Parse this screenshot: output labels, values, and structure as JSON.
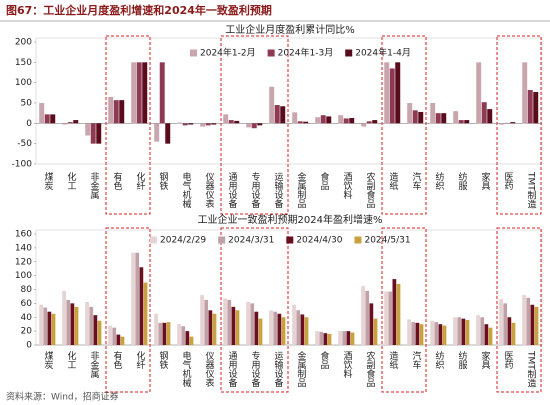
{
  "header": {
    "title": "图67：工业企业月度盈利增速和2024年一致盈利预期"
  },
  "footer": {
    "source": "资料来源：Wind，招商证券"
  },
  "chart_data": [
    {
      "type": "bar",
      "title": "工业企业月度盈利累计同比%",
      "categories": [
        "煤炭",
        "化工",
        "非金属",
        "有色",
        "化纤",
        "钢铁",
        "电气机械",
        "仪器仪表",
        "通用设备",
        "专用设备",
        "运输设备",
        "金属制品",
        "食品",
        "酒饮料",
        "农副食品",
        "造纸",
        "汽车",
        "纺织",
        "纺服",
        "家具",
        "医药",
        "TMT制造"
      ],
      "series": [
        {
          "name": "2024年1-2月",
          "color": "#c9a6ad",
          "values": [
            50,
            -3,
            -30,
            65,
            150,
            -45,
            2,
            -8,
            22,
            -10,
            90,
            27,
            15,
            20,
            -8,
            150,
            50,
            50,
            30,
            150,
            -3,
            150
          ]
        },
        {
          "name": "2024年1-3月",
          "color": "#8e3a52",
          "values": [
            22,
            3,
            -50,
            57,
            150,
            150,
            -5,
            -5,
            8,
            -12,
            45,
            5,
            20,
            12,
            5,
            135,
            32,
            25,
            8,
            52,
            1,
            82
          ]
        },
        {
          "name": "2024年1-4月",
          "color": "#5a0c1c",
          "values": [
            22,
            8,
            -50,
            57,
            150,
            -50,
            -3,
            -3,
            6,
            -5,
            42,
            4,
            17,
            13,
            8,
            150,
            28,
            25,
            8,
            35,
            3,
            77
          ]
        }
      ],
      "ylim": [
        -100,
        200
      ],
      "yticks": [
        -100,
        -50,
        0,
        50,
        100,
        150,
        200
      ],
      "grid": false,
      "legend": "top"
    },
    {
      "type": "bar",
      "title": "工业企业一致盈利预期2024年盈利增速%",
      "categories": [
        "煤炭",
        "化工",
        "非金属",
        "有色",
        "化纤",
        "钢铁",
        "电气机械",
        "仪器仪表",
        "通用设备",
        "专用设备",
        "运输设备",
        "金属制品",
        "食品",
        "酒饮料",
        "农副食品",
        "造纸",
        "汽车",
        "纺织",
        "纺服",
        "家具",
        "医药",
        "TMT制造"
      ],
      "series": [
        {
          "name": "2024/2/29",
          "color": "#e6d3d3",
          "values": [
            58,
            78,
            62,
            28,
            133,
            45,
            30,
            72,
            67,
            62,
            50,
            58,
            20,
            20,
            85,
            77,
            37,
            35,
            40,
            43,
            66,
            72
          ]
        },
        {
          "name": "2024/3/31",
          "color": "#c0a1a8",
          "values": [
            54,
            65,
            55,
            25,
            133,
            32,
            27,
            65,
            65,
            60,
            48,
            50,
            19,
            20,
            78,
            77,
            33,
            33,
            40,
            40,
            60,
            68
          ]
        },
        {
          "name": "2024/4/30",
          "color": "#6a0f1f",
          "values": [
            48,
            60,
            43,
            15,
            112,
            32,
            20,
            50,
            55,
            48,
            45,
            44,
            17,
            20,
            60,
            95,
            32,
            30,
            38,
            30,
            40,
            58
          ]
        },
        {
          "name": "2024/5/31",
          "color": "#c9a13f",
          "values": [
            45,
            55,
            35,
            12,
            90,
            33,
            12,
            45,
            50,
            38,
            40,
            40,
            16,
            18,
            38,
            88,
            30,
            28,
            36,
            25,
            32,
            55
          ]
        }
      ],
      "ylim": [
        0,
        160
      ],
      "yticks": [
        0,
        20,
        40,
        60,
        80,
        100,
        120,
        140,
        160
      ],
      "grid": false,
      "legend": "top"
    }
  ]
}
